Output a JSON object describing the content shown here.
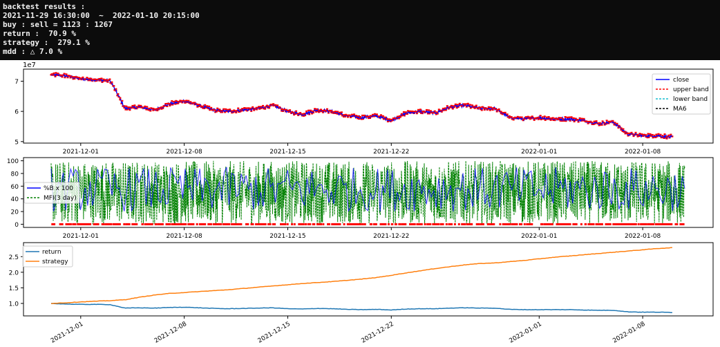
{
  "console": {
    "lines": [
      "backtest results :",
      "2021-11-29 16:30:00  ~  2022-01-10 20:15:00",
      "buy : sell = 1123 : 1267",
      "return :  70.9 %",
      "strategy :  279.1 %",
      "mdd : △ 7.0 %"
    ]
  },
  "colors": {
    "close": "#0000ff",
    "upper_band": "#ff0000",
    "lower_band": "#17becf",
    "ma6": "#000000",
    "pctb": "#0000ff",
    "mfi": "#008000",
    "buy_marker": "#ff0000",
    "return": "#1f77b4",
    "strategy": "#ff7f0e"
  },
  "x_ticks": [
    "2021-12-01",
    "2021-12-08",
    "2021-12-15",
    "2021-12-22",
    "2022-01-01",
    "2022-01-08"
  ],
  "x_range": [
    "2021-11-29",
    "2022-01-10"
  ],
  "chart_data": [
    {
      "type": "line",
      "scale_label": "1e7",
      "ylim": [
        4.95,
        7.4
      ],
      "y_ticks": [
        "5",
        "6",
        "7"
      ],
      "legend_placement": "top-right",
      "legend": [
        "close",
        "upper band",
        "lower band",
        "MA6"
      ],
      "x": [
        "2021-11-29",
        "2021-11-30",
        "2021-12-01",
        "2021-12-02",
        "2021-12-03",
        "2021-12-04",
        "2021-12-05",
        "2021-12-06",
        "2021-12-07",
        "2021-12-08",
        "2021-12-09",
        "2021-12-10",
        "2021-12-11",
        "2021-12-12",
        "2021-12-13",
        "2021-12-14",
        "2021-12-15",
        "2021-12-16",
        "2021-12-17",
        "2021-12-18",
        "2021-12-19",
        "2021-12-20",
        "2021-12-21",
        "2021-12-22",
        "2021-12-23",
        "2021-12-24",
        "2021-12-25",
        "2021-12-26",
        "2021-12-27",
        "2021-12-28",
        "2021-12-29",
        "2021-12-30",
        "2021-12-31",
        "2022-01-01",
        "2022-01-02",
        "2022-01-03",
        "2022-01-04",
        "2022-01-05",
        "2022-01-06",
        "2022-01-07",
        "2022-01-08",
        "2022-01-09",
        "2022-01-10"
      ],
      "series": [
        {
          "name": "close",
          "values": [
            7.22,
            7.18,
            7.08,
            7.05,
            7.02,
            6.1,
            6.15,
            6.05,
            6.25,
            6.35,
            6.2,
            6.05,
            6.0,
            6.05,
            6.1,
            6.2,
            6.0,
            5.9,
            6.05,
            6.0,
            5.85,
            5.8,
            5.85,
            5.7,
            5.95,
            6.0,
            5.95,
            6.15,
            6.2,
            6.1,
            6.1,
            5.8,
            5.75,
            5.8,
            5.75,
            5.75,
            5.7,
            5.6,
            5.65,
            5.25,
            5.2,
            5.2,
            5.15
          ]
        }
      ]
    },
    {
      "type": "line",
      "ylim": [
        -5,
        105
      ],
      "y_ticks": [
        "0",
        "20",
        "40",
        "60",
        "80",
        "100"
      ],
      "legend_placement": "center-left",
      "legend": [
        "%B x 100",
        "MFI(3 day)"
      ]
    },
    {
      "type": "line",
      "ylim": [
        0.6,
        2.95
      ],
      "y_ticks": [
        "1.0",
        "1.5",
        "2.0",
        "2.5"
      ],
      "legend_placement": "top-left",
      "legend": [
        "return",
        "strategy"
      ],
      "x": [
        "2021-11-29",
        "2021-11-30",
        "2021-12-01",
        "2021-12-02",
        "2021-12-03",
        "2021-12-04",
        "2021-12-05",
        "2021-12-06",
        "2021-12-07",
        "2021-12-08",
        "2021-12-09",
        "2021-12-10",
        "2021-12-11",
        "2021-12-12",
        "2021-12-13",
        "2021-12-14",
        "2021-12-15",
        "2021-12-16",
        "2021-12-17",
        "2021-12-18",
        "2021-12-19",
        "2021-12-20",
        "2021-12-21",
        "2021-12-22",
        "2021-12-23",
        "2021-12-24",
        "2021-12-25",
        "2021-12-26",
        "2021-12-27",
        "2021-12-28",
        "2021-12-29",
        "2021-12-30",
        "2021-12-31",
        "2022-01-01",
        "2022-01-02",
        "2022-01-03",
        "2022-01-04",
        "2022-01-05",
        "2022-01-06",
        "2022-01-07",
        "2022-01-08",
        "2022-01-09",
        "2022-01-10"
      ],
      "series": [
        {
          "name": "return",
          "values": [
            1.0,
            0.98,
            0.97,
            0.97,
            0.96,
            0.85,
            0.86,
            0.85,
            0.87,
            0.88,
            0.86,
            0.84,
            0.83,
            0.84,
            0.85,
            0.86,
            0.83,
            0.82,
            0.84,
            0.83,
            0.81,
            0.8,
            0.81,
            0.79,
            0.82,
            0.83,
            0.83,
            0.85,
            0.86,
            0.85,
            0.85,
            0.81,
            0.8,
            0.8,
            0.8,
            0.8,
            0.79,
            0.78,
            0.78,
            0.73,
            0.72,
            0.72,
            0.71
          ]
        },
        {
          "name": "strategy",
          "values": [
            1.0,
            1.02,
            1.05,
            1.07,
            1.09,
            1.12,
            1.2,
            1.27,
            1.32,
            1.35,
            1.38,
            1.41,
            1.44,
            1.48,
            1.52,
            1.56,
            1.6,
            1.64,
            1.67,
            1.7,
            1.74,
            1.78,
            1.83,
            1.9,
            1.98,
            2.05,
            2.12,
            2.18,
            2.24,
            2.28,
            2.3,
            2.34,
            2.38,
            2.43,
            2.48,
            2.52,
            2.56,
            2.6,
            2.64,
            2.68,
            2.72,
            2.76,
            2.79
          ]
        }
      ]
    }
  ]
}
